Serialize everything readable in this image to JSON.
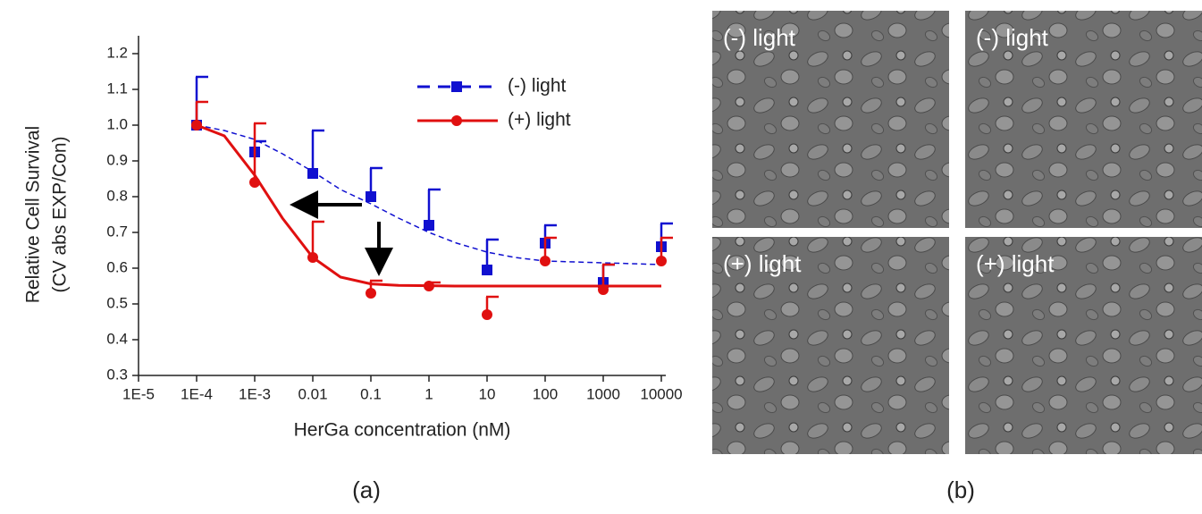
{
  "chart_data": {
    "type": "scatter",
    "ylabel": [
      "Relative Cell Survival",
      "(CV abs EXP/Con)"
    ],
    "xlabel": "HerGa concentration (nM)",
    "log_x": true,
    "xlim": [
      1e-05,
      10000
    ],
    "xticks": [
      {
        "value": 1e-05,
        "label": "1E-5"
      },
      {
        "value": 0.0001,
        "label": "1E-4"
      },
      {
        "value": 0.001,
        "label": "1E-3"
      },
      0.01,
      0.1,
      1,
      10,
      100,
      1000,
      10000
    ],
    "ylim": [
      0.3,
      1.2
    ],
    "yticks": [
      0.3,
      0.4,
      0.5,
      0.6,
      0.7,
      0.8,
      0.9,
      {
        "value": 1,
        "label": "1.0"
      },
      1.1,
      1.2
    ],
    "x": [
      0.0001,
      0.001,
      0.01,
      0.1,
      1,
      10,
      100,
      1000,
      10000
    ],
    "fit_x": [
      0.0001,
      0.0003,
      0.001,
      0.003,
      0.01,
      0.03,
      0.1,
      0.3,
      1,
      3,
      10,
      30,
      100,
      1000,
      10000
    ],
    "series": [
      {
        "name": "(-) light",
        "color": "#1010d0",
        "marker": "square",
        "dashed": true,
        "values": [
          1.0,
          0.925,
          0.865,
          0.8,
          0.72,
          0.595,
          0.67,
          0.56,
          0.66
        ],
        "errors": [
          0.135,
          0.03,
          0.12,
          0.08,
          0.1,
          0.085,
          0.05,
          0.05,
          0.065
        ],
        "fit_values": [
          1.0,
          0.985,
          0.96,
          0.92,
          0.87,
          0.82,
          0.78,
          0.74,
          0.7,
          0.67,
          0.645,
          0.63,
          0.62,
          0.615,
          0.61
        ]
      },
      {
        "name": "(+) light",
        "color": "#e01010",
        "marker": "circle",
        "dashed": false,
        "values": [
          1.0,
          0.84,
          0.63,
          0.53,
          0.55,
          0.47,
          0.62,
          0.54,
          0.62
        ],
        "errors": [
          0.065,
          0.165,
          0.1,
          0.035,
          0.01,
          0.05,
          0.065,
          0.07,
          0.065
        ],
        "fit_values": [
          1.0,
          0.97,
          0.86,
          0.74,
          0.63,
          0.575,
          0.556,
          0.552,
          0.551,
          0.55,
          0.55,
          0.55,
          0.55,
          0.55,
          0.55
        ]
      }
    ]
  },
  "panels": [
    {
      "label": "(-) light"
    },
    {
      "label": "(-) light"
    },
    {
      "label": "(+) light"
    },
    {
      "label": "(+) light"
    }
  ],
  "captions": [
    "(a)",
    "(b)"
  ]
}
